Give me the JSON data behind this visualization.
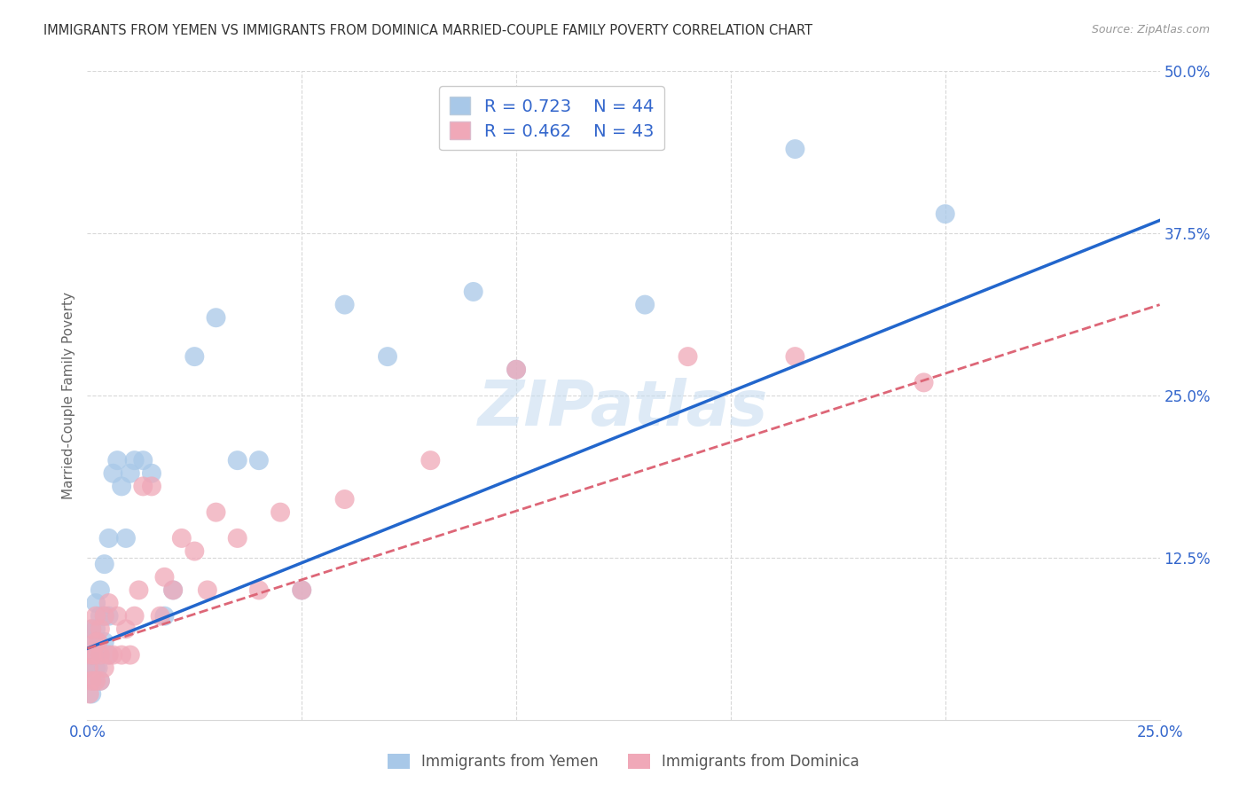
{
  "title": "IMMIGRANTS FROM YEMEN VS IMMIGRANTS FROM DOMINICA MARRIED-COUPLE FAMILY POVERTY CORRELATION CHART",
  "source": "Source: ZipAtlas.com",
  "ylabel": "Married-Couple Family Poverty",
  "xlim": [
    0.0,
    0.25
  ],
  "ylim": [
    0.0,
    0.5
  ],
  "xticks": [
    0.0,
    0.05,
    0.1,
    0.15,
    0.2,
    0.25
  ],
  "yticks": [
    0.0,
    0.125,
    0.25,
    0.375,
    0.5
  ],
  "xticklabels": [
    "0.0%",
    "",
    "",
    "",
    "",
    "25.0%"
  ],
  "yticklabels": [
    "",
    "12.5%",
    "25.0%",
    "37.5%",
    "50.0%"
  ],
  "background_color": "#ffffff",
  "grid_color": "#d8d8d8",
  "yemen_color": "#a8c8e8",
  "dominica_color": "#f0a8b8",
  "yemen_line_color": "#2266cc",
  "dominica_line_color": "#dd6677",
  "legend_r_yemen": "R = 0.723",
  "legend_n_yemen": "N = 44",
  "legend_r_dominica": "R = 0.462",
  "legend_n_dominica": "N = 43",
  "watermark": "ZIPatlas",
  "yemen_scatter_x": [
    0.0005,
    0.001,
    0.001,
    0.001,
    0.0015,
    0.0015,
    0.002,
    0.002,
    0.002,
    0.002,
    0.0025,
    0.0025,
    0.003,
    0.003,
    0.003,
    0.003,
    0.004,
    0.004,
    0.004,
    0.005,
    0.005,
    0.005,
    0.006,
    0.007,
    0.008,
    0.009,
    0.01,
    0.011,
    0.013,
    0.015,
    0.018,
    0.02,
    0.025,
    0.03,
    0.035,
    0.04,
    0.05,
    0.06,
    0.07,
    0.09,
    0.1,
    0.13,
    0.165,
    0.2
  ],
  "yemen_scatter_y": [
    0.04,
    0.02,
    0.05,
    0.07,
    0.03,
    0.06,
    0.04,
    0.05,
    0.07,
    0.09,
    0.04,
    0.06,
    0.03,
    0.05,
    0.08,
    0.1,
    0.06,
    0.08,
    0.12,
    0.05,
    0.08,
    0.14,
    0.19,
    0.2,
    0.18,
    0.14,
    0.19,
    0.2,
    0.2,
    0.19,
    0.08,
    0.1,
    0.28,
    0.31,
    0.2,
    0.2,
    0.1,
    0.32,
    0.28,
    0.33,
    0.27,
    0.32,
    0.44,
    0.39
  ],
  "dominica_scatter_x": [
    0.0003,
    0.0005,
    0.001,
    0.001,
    0.001,
    0.0015,
    0.002,
    0.002,
    0.002,
    0.0025,
    0.003,
    0.003,
    0.003,
    0.004,
    0.004,
    0.005,
    0.005,
    0.006,
    0.007,
    0.008,
    0.009,
    0.01,
    0.011,
    0.012,
    0.013,
    0.015,
    0.017,
    0.018,
    0.02,
    0.022,
    0.025,
    0.028,
    0.03,
    0.035,
    0.04,
    0.045,
    0.05,
    0.06,
    0.08,
    0.1,
    0.14,
    0.165,
    0.195
  ],
  "dominica_scatter_y": [
    0.04,
    0.02,
    0.03,
    0.05,
    0.07,
    0.05,
    0.03,
    0.06,
    0.08,
    0.06,
    0.03,
    0.05,
    0.07,
    0.04,
    0.08,
    0.05,
    0.09,
    0.05,
    0.08,
    0.05,
    0.07,
    0.05,
    0.08,
    0.1,
    0.18,
    0.18,
    0.08,
    0.11,
    0.1,
    0.14,
    0.13,
    0.1,
    0.16,
    0.14,
    0.1,
    0.16,
    0.1,
    0.17,
    0.2,
    0.27,
    0.28,
    0.28,
    0.26
  ],
  "yemen_line_x0": 0.0,
  "yemen_line_y0": 0.055,
  "yemen_line_x1": 0.25,
  "yemen_line_y1": 0.385,
  "dominica_line_x0": 0.0,
  "dominica_line_y0": 0.055,
  "dominica_line_x1": 0.25,
  "dominica_line_y1": 0.32
}
